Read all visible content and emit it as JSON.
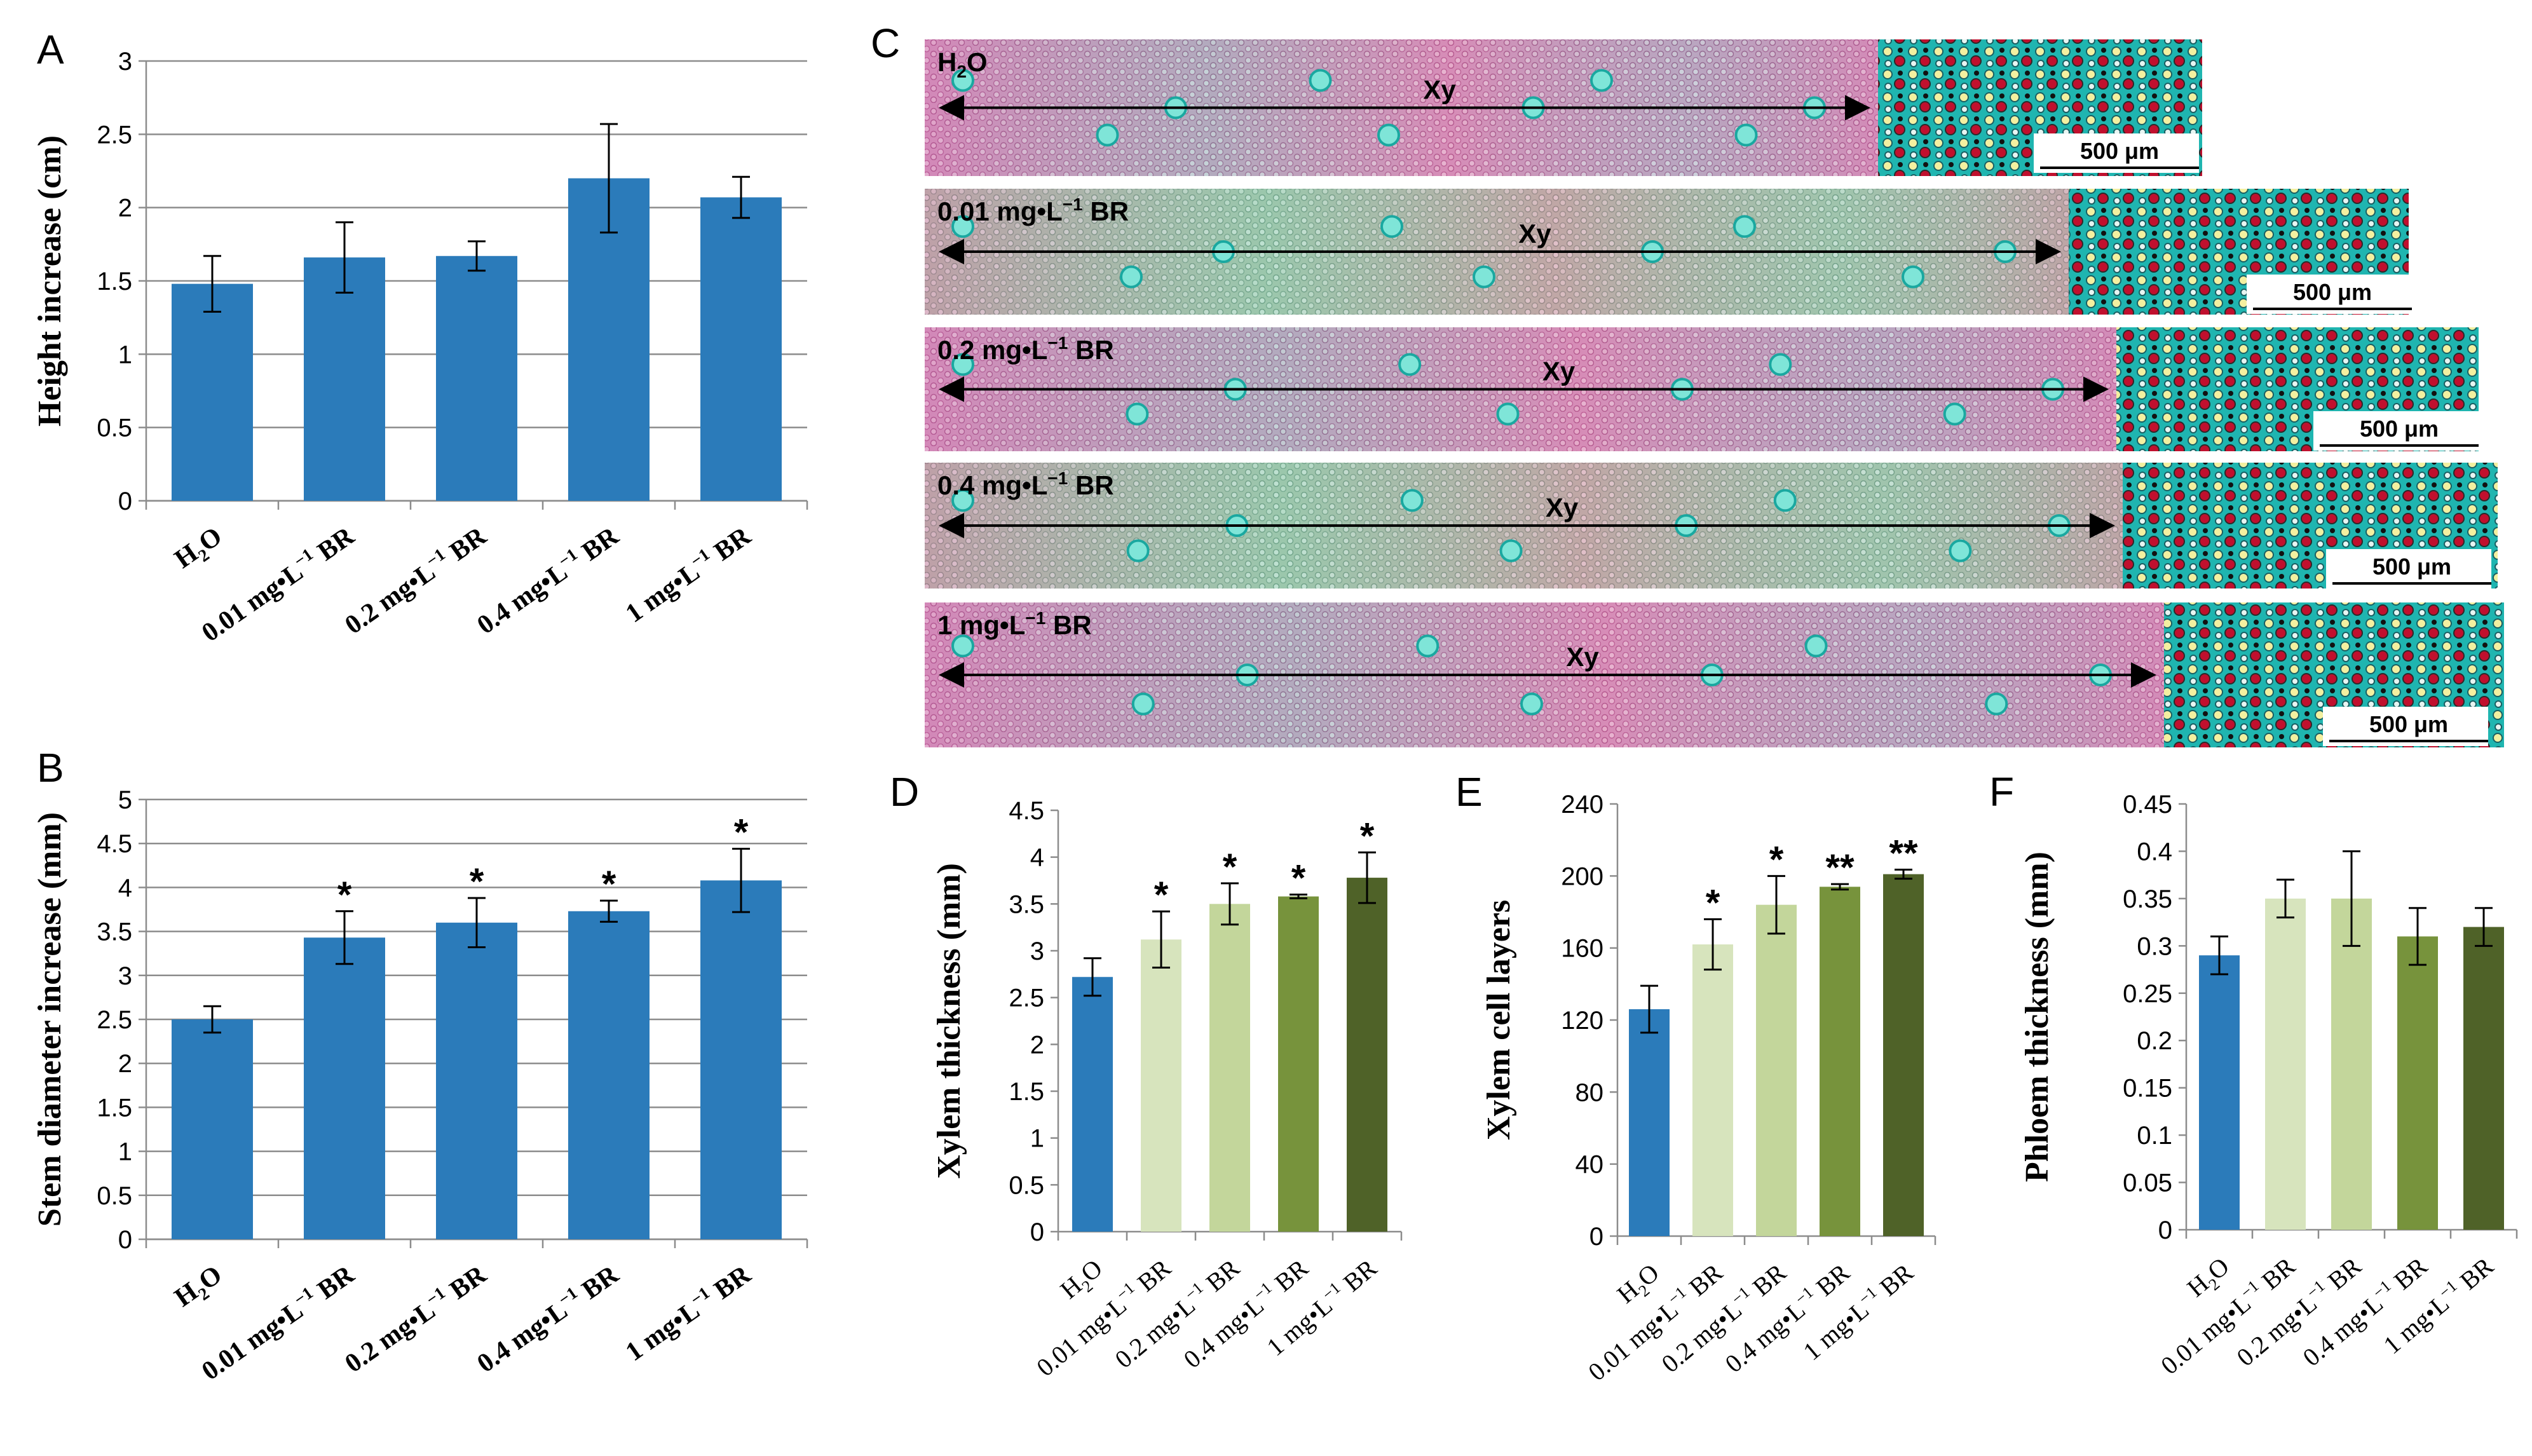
{
  "colors": {
    "blue": "#2b7bba",
    "light_green": "#d7e4bd",
    "mid_green": "#c3d69b",
    "green": "#77933c",
    "dark_green": "#4f6228",
    "grid": "#8c8c8c",
    "axis": "#8c8c8c",
    "text": "#000000"
  },
  "chart_data": [
    {
      "panel": "A",
      "type": "bar",
      "ylabel": "Height increase (cm)",
      "ylim": [
        0,
        3
      ],
      "yticks": [
        "0",
        "0.5",
        "1",
        "1.5",
        "2",
        "2.5",
        "3"
      ],
      "grid": true,
      "categories": [
        "H2O",
        "0.01 mg•L−1 BR",
        "0.2 mg•L−1 BR",
        "0.4 mg•L−1 BR",
        "1 mg•L−1 BR"
      ],
      "values": [
        1.48,
        1.66,
        1.67,
        2.2,
        2.07
      ],
      "errors": [
        0.19,
        0.24,
        0.1,
        0.37,
        0.14
      ],
      "significance": [
        "",
        "",
        "",
        "",
        ""
      ],
      "bar_colors": [
        "#2b7bba",
        "#2b7bba",
        "#2b7bba",
        "#2b7bba",
        "#2b7bba"
      ]
    },
    {
      "panel": "B",
      "type": "bar",
      "ylabel": "Stem diameter increase (mm)",
      "ylim": [
        0,
        5
      ],
      "yticks": [
        "0",
        "0.5",
        "1",
        "1.5",
        "2",
        "2.5",
        "3",
        "3.5",
        "4",
        "4.5",
        "5"
      ],
      "grid": true,
      "categories": [
        "H2O",
        "0.01 mg•L−1 BR",
        "0.2 mg•L−1 BR",
        "0.4 mg•L−1 BR",
        "1 mg•L−1 BR"
      ],
      "values": [
        2.5,
        3.43,
        3.6,
        3.73,
        4.08
      ],
      "errors": [
        0.15,
        0.3,
        0.28,
        0.12,
        0.36
      ],
      "significance": [
        "",
        "*",
        "*",
        "*",
        "*"
      ],
      "bar_colors": [
        "#2b7bba",
        "#2b7bba",
        "#2b7bba",
        "#2b7bba",
        "#2b7bba"
      ]
    },
    {
      "panel": "D",
      "type": "bar",
      "ylabel": "Xylem thickness (mm)",
      "ylim": [
        0,
        4.5
      ],
      "yticks": [
        "0",
        "0.5",
        "1",
        "1.5",
        "2",
        "2.5",
        "3",
        "3.5",
        "4",
        "4.5"
      ],
      "grid": false,
      "categories": [
        "H2O",
        "0.01 mg•L−1 BR",
        "0.2 mg•L−1 BR",
        "0.4 mg•L−1 BR",
        "1 mg•L−1 BR"
      ],
      "values": [
        2.72,
        3.12,
        3.5,
        3.58,
        3.78
      ],
      "errors": [
        0.2,
        0.3,
        0.22,
        0.02,
        0.27
      ],
      "significance": [
        "",
        "*",
        "*",
        "*",
        "*"
      ],
      "bar_colors": [
        "#2b7bba",
        "#d7e4bd",
        "#c3d69b",
        "#77933c",
        "#4f6228"
      ]
    },
    {
      "panel": "E",
      "type": "bar",
      "ylabel": "Xylem cell layers",
      "ylim": [
        0,
        240
      ],
      "yticks": [
        "0",
        "40",
        "80",
        "120",
        "160",
        "200",
        "240"
      ],
      "grid": false,
      "categories": [
        "H2O",
        "0.01 mg•L−1 BR",
        "0.2 mg•L−1 BR",
        "0.4 mg•L−1 BR",
        "1 mg•L−1 BR"
      ],
      "values": [
        126,
        162,
        184,
        194,
        201
      ],
      "errors": [
        13,
        14,
        16,
        1.5,
        2.5
      ],
      "significance": [
        "",
        "*",
        "*",
        "**",
        "**"
      ],
      "bar_colors": [
        "#2b7bba",
        "#d7e4bd",
        "#c3d69b",
        "#77933c",
        "#4f6228"
      ]
    },
    {
      "panel": "F",
      "type": "bar",
      "ylabel": "Phloem thickness (mm)",
      "ylim": [
        0,
        0.45
      ],
      "yticks": [
        "0",
        "0.05",
        "0.1",
        "0.15",
        "0.2",
        "0.25",
        "0.3",
        "0.35",
        "0.4",
        "0.45"
      ],
      "grid": false,
      "categories": [
        "H2O",
        "0.01 mg•L−1 BR",
        "0.2 mg•L−1 BR",
        "0.4 mg•L−1 BR",
        "1 mg•L−1 BR"
      ],
      "values": [
        0.29,
        0.35,
        0.35,
        0.31,
        0.32
      ],
      "errors": [
        0.02,
        0.02,
        0.05,
        0.03,
        0.02
      ],
      "significance": [
        "",
        "",
        "",
        "",
        ""
      ],
      "bar_colors": [
        "#2b7bba",
        "#d7e4bd",
        "#c3d69b",
        "#77933c",
        "#4f6228"
      ]
    }
  ],
  "micrographs": {
    "panel": "C",
    "strips": [
      {
        "label": "H2O",
        "tissue_label": "Xy",
        "scale_label": "500 μm"
      },
      {
        "label": "0.01 mg•L−1 BR",
        "tissue_label": "Xy",
        "scale_label": "500 μm"
      },
      {
        "label": "0.2 mg•L−1 BR",
        "tissue_label": "Xy",
        "scale_label": "500 μm"
      },
      {
        "label": "0.4 mg•L−1 BR",
        "tissue_label": "Xy",
        "scale_label": "500 μm"
      },
      {
        "label": "1 mg•L−1 BR",
        "tissue_label": "Xy",
        "scale_label": "500 μm"
      }
    ]
  }
}
